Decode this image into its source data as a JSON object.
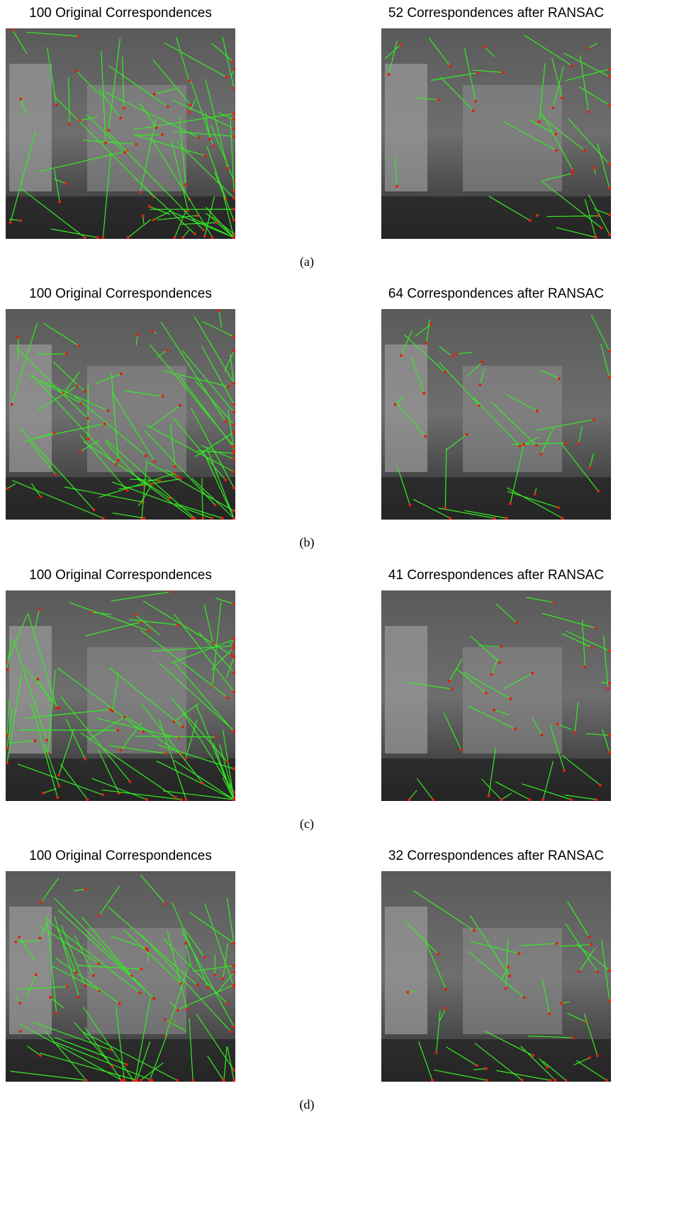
{
  "panels": [
    {
      "left_title": "100 Original Correspondences",
      "right_title": "52 Correspondences after RANSAC",
      "caption": "(a)"
    },
    {
      "left_title": "100 Original Correspondences",
      "right_title": "64 Correspondences after RANSAC",
      "caption": "(b)"
    },
    {
      "left_title": "100 Original Correspondences",
      "right_title": "41 Correspondences after RANSAC",
      "caption": "(c)"
    },
    {
      "left_title": "100 Original Correspondences",
      "right_title": "32 Correspondences after RANSAC",
      "caption": "(d)"
    }
  ]
}
